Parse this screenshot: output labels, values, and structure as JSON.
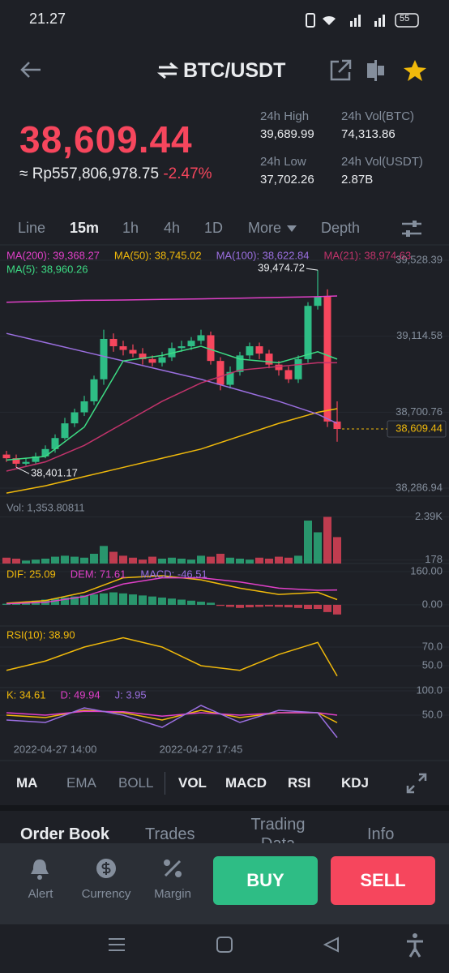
{
  "status_bar": {
    "time": "21.27",
    "battery": "55"
  },
  "header": {
    "pair": "BTC/USDT"
  },
  "price": {
    "last": "38,609.44",
    "local": "≈ Rp557,806,978.75",
    "change": "-2.47%"
  },
  "stats": [
    {
      "label": "24h High",
      "value": "39,689.99"
    },
    {
      "label": "24h Vol(BTC)",
      "value": "74,313.86"
    },
    {
      "label": "24h Low",
      "value": "37,702.26"
    },
    {
      "label": "24h Vol(USDT)",
      "value": "2.87B"
    }
  ],
  "intervals": [
    "Line",
    "15m",
    "1h",
    "4h",
    "1D",
    "More",
    "Depth"
  ],
  "indicator_tabs": [
    "MA",
    "EMA",
    "BOLL",
    "VOL",
    "MACD",
    "RSI",
    "KDJ"
  ],
  "detail_tabs": [
    "Order Book",
    "Trades",
    "Trading Data",
    "Info"
  ],
  "actions": {
    "alert": "Alert",
    "currency": "Currency",
    "margin": "Margin",
    "buy": "BUY",
    "sell": "SELL"
  },
  "chart_data": [
    {
      "type": "candlestick",
      "up_color": "#2ebd85",
      "down_color": "#f6465d",
      "open": [
        38470,
        38450,
        38420,
        38430,
        38460,
        38500,
        38560,
        38640,
        38700,
        38760,
        38880,
        39100,
        39060,
        39040,
        39020,
        38990,
        38970,
        39000,
        39050,
        39060,
        39090,
        39120,
        38980,
        38850,
        38920,
        39010,
        39060,
        39020,
        38960,
        38930,
        38880,
        38990,
        39280,
        39330,
        38650
      ],
      "high": [
        38490,
        38470,
        38450,
        38480,
        38520,
        38580,
        38670,
        38720,
        38790,
        38900,
        39150,
        39130,
        39090,
        39070,
        39050,
        39010,
        39030,
        39080,
        39090,
        39110,
        39150,
        39140,
        39000,
        38950,
        39030,
        39080,
        39080,
        39040,
        38980,
        38950,
        39010,
        39300,
        39474.72,
        39370,
        38760
      ],
      "low": [
        38430,
        38401.17,
        38410,
        38420,
        38450,
        38480,
        38550,
        38620,
        38680,
        38740,
        38850,
        39030,
        39010,
        39000,
        38960,
        38950,
        38950,
        38980,
        39030,
        39040,
        39070,
        38960,
        38820,
        38830,
        38900,
        38990,
        38990,
        38940,
        38900,
        38860,
        38860,
        38970,
        39260,
        38620,
        38540
      ],
      "close": [
        38450,
        38420,
        38430,
        38460,
        38500,
        38560,
        38640,
        38700,
        38760,
        38880,
        39100,
        39060,
        39040,
        39020,
        38990,
        38970,
        39000,
        39050,
        39060,
        39090,
        39120,
        38980,
        38850,
        38920,
        39010,
        39060,
        39020,
        38960,
        38930,
        38880,
        38990,
        39280,
        39330,
        38650,
        38609.44
      ],
      "series": [
        {
          "name": "MA(200): 39,368.27",
          "color": "#e040c8",
          "x": [
            0,
            4,
            8,
            12,
            16,
            20,
            24,
            28,
            32,
            34
          ],
          "values": [
            39300,
            39305,
            39310,
            39312,
            39315,
            39318,
            39322,
            39326,
            39330,
            39334
          ]
        },
        {
          "name": "MA(50): 38,745.02",
          "color": "#f0b90b",
          "x": [
            0,
            4,
            8,
            12,
            16,
            20,
            24,
            28,
            32,
            34
          ],
          "values": [
            38260,
            38300,
            38350,
            38400,
            38450,
            38500,
            38570,
            38640,
            38700,
            38720
          ]
        },
        {
          "name": "MA(100): 38,622.84",
          "color": "#9b6fe0",
          "x": [
            0,
            4,
            8,
            12,
            16,
            20,
            24,
            28,
            32,
            34
          ],
          "values": [
            39130,
            39080,
            39030,
            38980,
            38930,
            38880,
            38820,
            38760,
            38690,
            38640
          ]
        },
        {
          "name": "MA(21): 38,974.63",
          "color": "#c2336b",
          "x": [
            0,
            4,
            8,
            12,
            16,
            20,
            24,
            28,
            32,
            34
          ],
          "values": [
            38380,
            38430,
            38520,
            38640,
            38760,
            38860,
            38930,
            38950,
            38970,
            38970
          ]
        },
        {
          "name": "MA(5): 38,960.26",
          "color": "#3ddc84",
          "x": [
            0,
            4,
            8,
            12,
            16,
            20,
            24,
            28,
            32,
            34
          ],
          "values": [
            38440,
            38460,
            38620,
            38980,
            39010,
            39060,
            38990,
            38970,
            39030,
            38990
          ]
        }
      ],
      "ylim": [
        38243,
        39599
      ],
      "yticks": [
        {
          "value": 39528.39,
          "label": "39,528.39"
        },
        {
          "value": 39114.58,
          "label": "39,114.58"
        },
        {
          "value": 38700.76,
          "label": "38,700.76"
        },
        {
          "value": 38286.94,
          "label": "38,286.94"
        }
      ],
      "last_price": {
        "value": 38609.44,
        "label": "38,609.44"
      },
      "annotations": [
        {
          "value": 39474.72,
          "label": "39,474.72"
        },
        {
          "value": 38401.17,
          "label": "38,401.17"
        }
      ],
      "xticks": [
        {
          "value": 5,
          "label": "2022-04-27 14:00"
        },
        {
          "value": 20,
          "label": "2022-04-27 17:45"
        }
      ]
    },
    {
      "type": "bar",
      "series": [
        {
          "name": "Vol: 1,353.80811",
          "kind": "bar",
          "values": [
            300,
            250,
            150,
            200,
            250,
            350,
            400,
            350,
            300,
            500,
            900,
            600,
            400,
            300,
            200,
            350,
            250,
            300,
            250,
            200,
            400,
            350,
            500,
            300,
            250,
            200,
            300,
            250,
            350,
            300,
            400,
            2200,
            1600,
            2390,
            1353.80811
          ]
        }
      ],
      "ylim": [
        0,
        2700
      ],
      "yticks": [
        {
          "value": 2390,
          "label": "2.39K"
        },
        178
      ]
    },
    {
      "type": "bar",
      "series": [
        {
          "name": "DIF: 25.09",
          "color": "#f0b90b",
          "x": [
            0,
            4,
            8,
            12,
            16,
            20,
            24,
            28,
            32,
            34
          ],
          "values": [
            8,
            20,
            60,
            130,
            140,
            120,
            80,
            50,
            60,
            25.09
          ]
        },
        {
          "name": "DEM: 71.61",
          "color": "#e040c8",
          "x": [
            0,
            4,
            8,
            12,
            16,
            20,
            24,
            28,
            32,
            34
          ],
          "values": [
            5,
            12,
            40,
            100,
            130,
            130,
            110,
            80,
            70,
            71.61
          ]
        },
        {
          "name": "MACD: -46.51",
          "color": "#9b6fe0",
          "kind": "bar",
          "values": [
            5,
            10,
            15,
            20,
            25,
            30,
            35,
            40,
            45,
            50,
            55,
            60,
            55,
            50,
            45,
            40,
            35,
            30,
            25,
            20,
            15,
            10,
            -5,
            -10,
            -15,
            -12,
            -10,
            -8,
            -10,
            -12,
            -15,
            -20,
            -20,
            -35,
            -46.51
          ]
        }
      ],
      "ylim": [
        -94,
        187
      ],
      "yticks": [
        {
          "value": 160,
          "label": "160.00"
        },
        {
          "value": 0,
          "label": "0.00"
        }
      ]
    },
    {
      "type": "line",
      "series": [
        {
          "name": "RSI(10): 38.90",
          "color": "#f0b90b",
          "x": [
            0,
            4,
            8,
            12,
            16,
            20,
            24,
            28,
            32,
            34
          ],
          "values": [
            45,
            55,
            70,
            80,
            70,
            50,
            45,
            62,
            75,
            38.9
          ]
        }
      ],
      "ylim": [
        26.5,
        90
      ],
      "yticks": [
        {
          "value": 70,
          "label": "70.0"
        },
        {
          "value": 50,
          "label": "50.0"
        }
      ]
    },
    {
      "type": "line",
      "series": [
        {
          "name": "K: 34.61",
          "color": "#f0b90b",
          "x": [
            0,
            4,
            8,
            12,
            16,
            20,
            24,
            28,
            32,
            34
          ],
          "values": [
            50,
            45,
            60,
            55,
            40,
            60,
            45,
            55,
            55,
            34.61
          ]
        },
        {
          "name": "D: 49.94",
          "color": "#e040c8",
          "x": [
            0,
            4,
            8,
            12,
            16,
            20,
            24,
            28,
            32,
            34
          ],
          "values": [
            55,
            50,
            58,
            57,
            48,
            55,
            50,
            55,
            55,
            49.94
          ]
        },
        {
          "name": "J: 3.95",
          "color": "#9b6fe0",
          "x": [
            0,
            4,
            8,
            12,
            16,
            20,
            24,
            28,
            32,
            34
          ],
          "values": [
            40,
            35,
            65,
            50,
            25,
            70,
            35,
            60,
            55,
            3.95
          ]
        }
      ],
      "ylim": [
        -5,
        106.7
      ],
      "yticks": [
        {
          "value": 100,
          "label": "100.0"
        },
        {
          "value": 50,
          "label": "50.0"
        }
      ]
    }
  ]
}
